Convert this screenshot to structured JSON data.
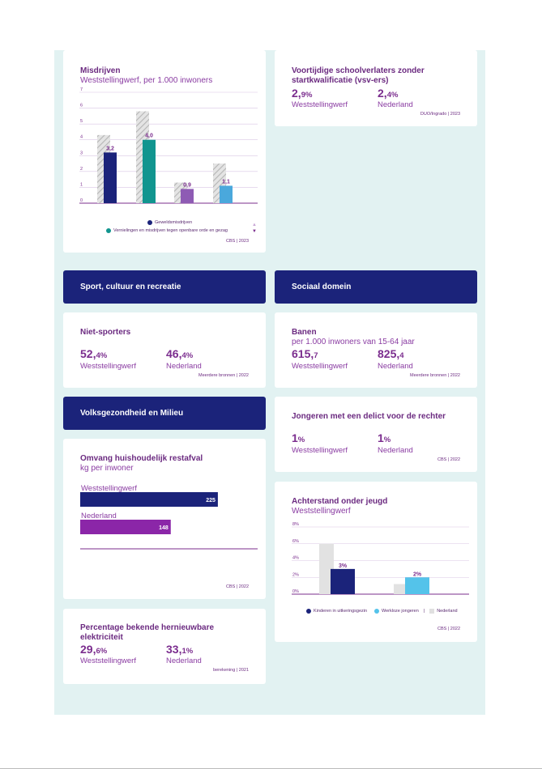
{
  "misdrijven": {
    "title": "Misdrijven",
    "subtitle": "Weststellingwerf, per 1.000 inwoners",
    "source": "CBS | 2023",
    "legend": [
      "Geweldsmisdrijven",
      "Vernielingen en misdrijven tegen openbare orde en gezag"
    ],
    "arrow_up": "▲",
    "arrow_down": "▼"
  },
  "vsv": {
    "title_line1": "Voortijdige schoolverlaters zonder",
    "title_line2": "startkwalificatie (vsv-ers)",
    "val1_main": "2,",
    "val1_dec": "9%",
    "label1": "Weststellingwerf",
    "val2_main": "2,",
    "val2_dec": "4%",
    "label2": "Nederland",
    "source": "DUO/Ingrado | 2023"
  },
  "headers": {
    "sport": "Sport, cultuur en recreatie",
    "sociaal": "Sociaal domein",
    "volksgezondheid": "Volksgezondheid en Milieu"
  },
  "niet_sporters": {
    "title": "Niet-sporters",
    "val1_main": "52,",
    "val1_dec": "4%",
    "label1": "Weststellingwerf",
    "val2_main": "46,",
    "val2_dec": "4%",
    "label2": "Nederland",
    "source": "Meerdere bronnen | 2022"
  },
  "banen": {
    "title": "Banen",
    "subtitle": "per 1.000 inwoners van 15-64 jaar",
    "val1_main": "615,",
    "val1_dec": "7",
    "label1": "Weststellingwerf",
    "val2_main": "825,",
    "val2_dec": "4",
    "label2": "Nederland",
    "source": "Meerdere bronnen | 2022"
  },
  "delict": {
    "title": "Jongeren met een delict voor de rechter",
    "val1_main": "1",
    "val1_dec": "%",
    "label1": "Weststellingwerf",
    "val2_main": "1",
    "val2_dec": "%",
    "label2": "Nederland",
    "source": "CBS | 2022"
  },
  "restafval": {
    "title": "Omvang huishoudelijk restafval",
    "subtitle": "kg per inwoner",
    "source": "CBS | 2022"
  },
  "achterstand": {
    "title": "Achterstand onder jeugd",
    "subtitle": "Weststellingwerf",
    "legend": [
      "Kinderen in uitkeringsgezin",
      "Werkloze jongeren",
      "Nederland"
    ],
    "source": "CBS | 2022"
  },
  "hernieuwbaar": {
    "title_line1": "Percentage bekende hernieuwbare",
    "title_line2": "elektriciteit",
    "val1_main": "29,",
    "val1_dec": "6%",
    "label1": "Weststellingwerf",
    "val2_main": "33,",
    "val2_dec": "1%",
    "label2": "Nederland",
    "source": "berekening | 2021"
  },
  "chart_data": [
    {
      "type": "bar",
      "ylim": [
        0,
        7
      ],
      "yticks": [
        "0",
        "1",
        "2",
        "3",
        "4",
        "5",
        "6",
        "7"
      ],
      "groups": 4,
      "series": [
        {
          "name": "Nederland",
          "values": [
            4.3,
            5.8,
            1.3,
            2.5
          ]
        },
        {
          "name": "Weststellingwerf",
          "values": [
            3.2,
            4.0,
            0.9,
            1.1
          ],
          "labels": [
            "3,2",
            "4,0",
            "0,9",
            "1,1"
          ],
          "colors": [
            "#1b237a",
            "#11958f",
            "#8e5bb4",
            "#4aa8dc"
          ]
        }
      ]
    },
    {
      "type": "bar",
      "orientation": "horizontal",
      "categories": [
        "Weststellingwerf",
        "Nederland"
      ],
      "values": [
        225,
        148
      ],
      "value_labels": [
        "225",
        "148"
      ],
      "colors": [
        "#1b237a",
        "#8b26a8"
      ],
      "xlim": [
        0,
        290
      ]
    },
    {
      "type": "bar",
      "ylim": [
        0,
        8
      ],
      "yticks": [
        "0%",
        "2%",
        "4%",
        "6%",
        "8%"
      ],
      "categories": [
        "Kinderen in uitkeringsgezin",
        "Werkloze jongeren"
      ],
      "series": [
        {
          "name": "Nederland",
          "values": [
            6.0,
            1.2
          ]
        },
        {
          "name": "Weststellingwerf",
          "values": [
            3.0,
            2.0
          ],
          "labels": [
            "3%",
            "2%"
          ],
          "colors": [
            "#1b237a",
            "#54c3ea"
          ]
        }
      ]
    }
  ]
}
